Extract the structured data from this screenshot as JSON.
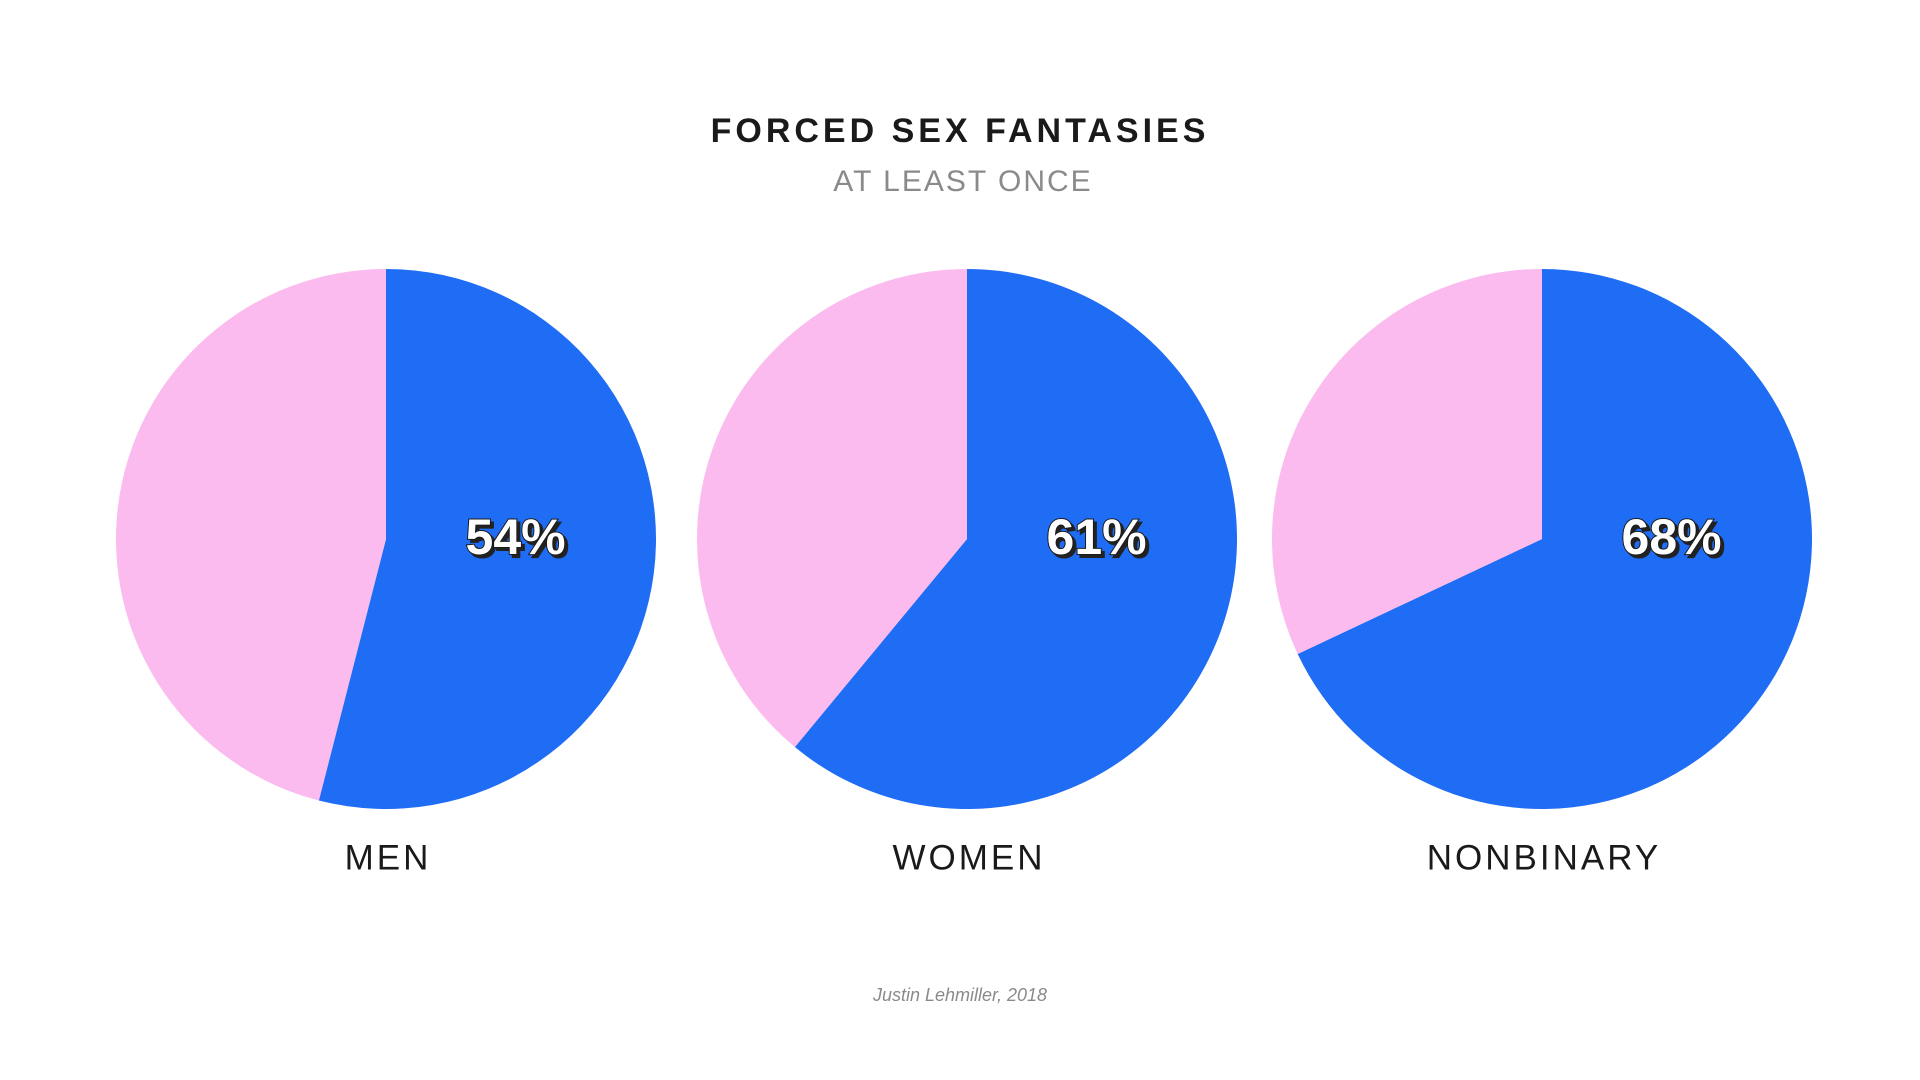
{
  "title": "FORCED SEX FANTASIES",
  "subtitle": "AT LEAST ONCE",
  "source": "Justin Lehmiller, 2018",
  "chart_data": [
    {
      "type": "pie",
      "label": "MEN",
      "values": [
        54,
        46
      ],
      "value_labels": [
        "54%",
        null
      ],
      "colors": [
        "#1f6cf5",
        "#fbbbef"
      ]
    },
    {
      "type": "pie",
      "label": "WOMEN",
      "values": [
        61,
        39
      ],
      "value_labels": [
        "61%",
        null
      ],
      "colors": [
        "#1f6cf5",
        "#fbbbef"
      ]
    },
    {
      "type": "pie",
      "label": "NONBINARY",
      "values": [
        68,
        32
      ],
      "value_labels": [
        "68%",
        null
      ],
      "colors": [
        "#1f6cf5",
        "#fbbbef"
      ]
    }
  ]
}
